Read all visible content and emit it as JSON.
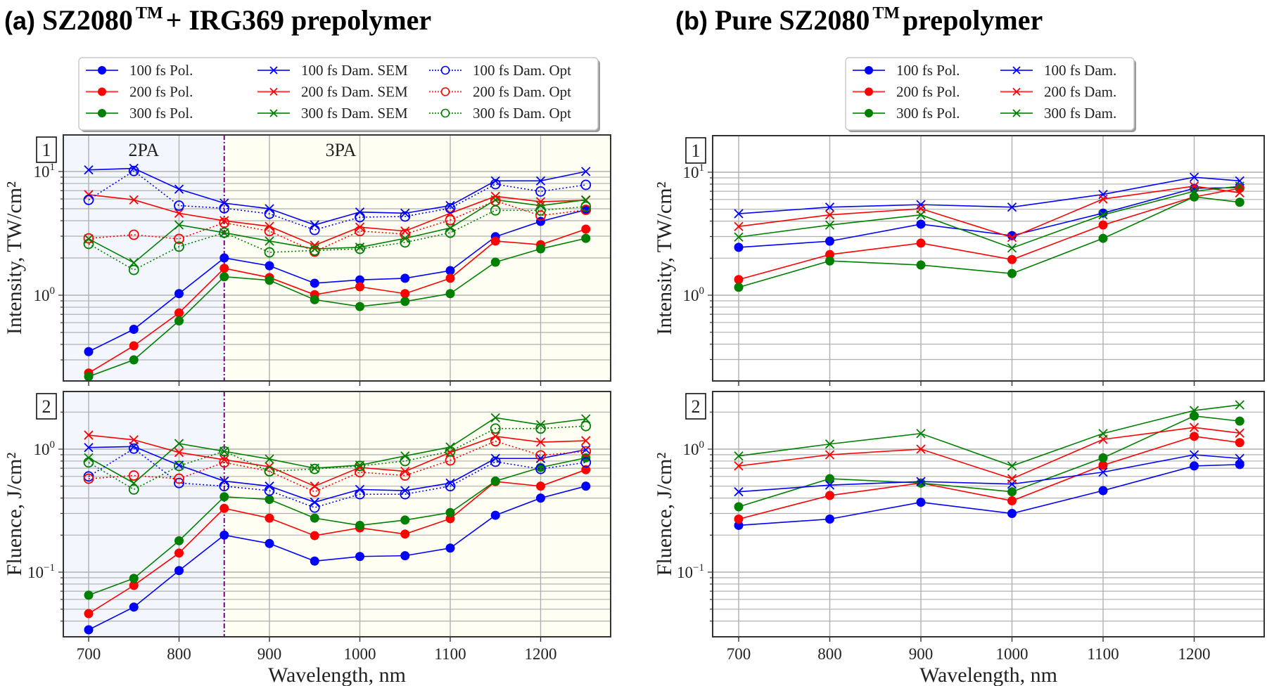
{
  "figure": {
    "panel_a_tag": "(a)",
    "panel_a_title": "SZ2080",
    "panel_a_title_sup": "TM",
    "panel_a_title_rest": " + IRG369 prepolymer",
    "panel_b_tag": "(b)",
    "panel_b_title": "Pure SZ2080",
    "panel_b_title_sup": "TM",
    "panel_b_title_rest": " prepolymer"
  },
  "colors": {
    "c100": "#0000ff",
    "c200": "#ff0000",
    "c300": "#007f00",
    "region2pa": "#f3f6fd",
    "region3pa": "#fefef2",
    "divider": "#800080",
    "grid": "#b0b0b0"
  },
  "chart_data": [
    {
      "id": "a1",
      "type": "line",
      "panel_label": "1",
      "title": "SZ2080TM + IRG369 prepolymer",
      "xlabel": "",
      "ylabel": "Intensity, TW/cm²",
      "yscale": "log",
      "ylim": [
        0.2,
        20
      ],
      "xlim": [
        672,
        1280
      ],
      "x": [
        700,
        750,
        800,
        850,
        900,
        950,
        1000,
        1050,
        1100,
        1150,
        1200,
        1250
      ],
      "xticks": [
        "700",
        "800",
        "900",
        "1000",
        "1100",
        "1200"
      ],
      "yticks": [
        {
          "base": "10",
          "exp": "1",
          "value": 10
        },
        {
          "base": "10",
          "exp": "0",
          "value": 1
        }
      ],
      "regions": [
        {
          "label": "2PA",
          "from": 672,
          "to": 850
        },
        {
          "label": "3PA",
          "from": 850,
          "to": 1280
        }
      ],
      "divider_x": 850,
      "grid": true,
      "series": [
        {
          "name": "100 fs Pol.",
          "color": "c100",
          "marker": "dot",
          "style": "solid",
          "values": [
            0.35,
            0.53,
            1.03,
            2.0,
            1.73,
            1.25,
            1.33,
            1.37,
            1.58,
            2.97,
            3.95,
            4.9
          ]
        },
        {
          "name": "200 fs Pol.",
          "color": "c200",
          "marker": "dot",
          "style": "solid",
          "values": [
            0.235,
            0.39,
            0.72,
            1.65,
            1.39,
            1.01,
            1.17,
            1.03,
            1.37,
            2.74,
            2.56,
            3.42
          ]
        },
        {
          "name": "300 fs Pol.",
          "color": "c300",
          "marker": "dot",
          "style": "solid",
          "values": [
            0.22,
            0.3,
            0.62,
            1.41,
            1.32,
            0.92,
            0.81,
            0.89,
            1.03,
            1.85,
            2.37,
            2.88
          ]
        },
        {
          "name": "100 fs Dam. SEM",
          "color": "c100",
          "marker": "x",
          "style": "solid",
          "values": [
            10.3,
            10.6,
            7.2,
            5.55,
            5.0,
            3.7,
            4.7,
            4.6,
            5.3,
            8.4,
            8.4,
            10.0
          ]
        },
        {
          "name": "200 fs Dam. SEM",
          "color": "c200",
          "marker": "x",
          "style": "solid",
          "values": [
            6.5,
            5.9,
            4.6,
            4.0,
            3.6,
            2.53,
            3.55,
            3.3,
            4.6,
            6.3,
            5.7,
            5.85
          ]
        },
        {
          "name": "300 fs Dam. SEM",
          "color": "c300",
          "marker": "x",
          "style": "solid",
          "values": [
            2.85,
            1.83,
            3.7,
            3.2,
            2.74,
            2.37,
            2.44,
            2.88,
            3.5,
            5.9,
            5.3,
            5.9
          ]
        },
        {
          "name": "100 fs Dam. Opt",
          "color": "c100",
          "marker": "ring",
          "style": "dotted",
          "values": [
            5.9,
            10.1,
            5.3,
            5.05,
            4.55,
            3.37,
            4.27,
            4.33,
            5.05,
            7.9,
            6.9,
            7.8
          ]
        },
        {
          "name": "200 fs Dam. Opt",
          "color": "c200",
          "marker": "ring",
          "style": "dotted",
          "values": [
            2.88,
            3.08,
            2.85,
            3.85,
            3.3,
            2.25,
            3.3,
            3.12,
            4.05,
            5.8,
            4.4,
            4.9
          ]
        },
        {
          "name": "300 fs Dam. Opt",
          "color": "c300",
          "marker": "ring",
          "style": "dotted",
          "values": [
            2.6,
            1.6,
            2.47,
            3.2,
            2.22,
            2.3,
            2.37,
            2.67,
            3.2,
            4.85,
            4.85,
            5.2
          ]
        }
      ]
    },
    {
      "id": "a2",
      "type": "line",
      "panel_label": "2",
      "xlabel": "Wavelength, nm",
      "ylabel": "Fluence, J/cm²",
      "yscale": "log",
      "ylim": [
        0.03,
        3.0
      ],
      "xlim": [
        672,
        1280
      ],
      "x": [
        700,
        750,
        800,
        850,
        900,
        950,
        1000,
        1050,
        1100,
        1150,
        1200,
        1250
      ],
      "xticks": [
        "700",
        "800",
        "900",
        "1000",
        "1100",
        "1200"
      ],
      "yticks": [
        {
          "base": "10",
          "exp": "0",
          "value": 1
        },
        {
          "base": "10",
          "exp": "−1",
          "value": 0.1
        }
      ],
      "regions": [
        {
          "label": "",
          "from": 672,
          "to": 850
        },
        {
          "label": "",
          "from": 850,
          "to": 1280
        }
      ],
      "divider_x": 850,
      "grid": true,
      "series": [
        {
          "name": "100 fs Pol.",
          "color": "c100",
          "marker": "dot",
          "style": "solid",
          "values": [
            0.034,
            0.052,
            0.103,
            0.2,
            0.171,
            0.123,
            0.134,
            0.136,
            0.157,
            0.29,
            0.4,
            0.5
          ]
        },
        {
          "name": "200 fs Pol.",
          "color": "c200",
          "marker": "dot",
          "style": "solid",
          "values": [
            0.046,
            0.078,
            0.143,
            0.33,
            0.275,
            0.198,
            0.229,
            0.204,
            0.272,
            0.545,
            0.5,
            0.68
          ]
        },
        {
          "name": "300 fs Pol.",
          "color": "c300",
          "marker": "dot",
          "style": "solid",
          "values": [
            0.065,
            0.089,
            0.18,
            0.41,
            0.39,
            0.275,
            0.24,
            0.265,
            0.305,
            0.55,
            0.71,
            0.85
          ]
        },
        {
          "name": "100 fs Dam. SEM",
          "color": "c100",
          "marker": "x",
          "style": "solid",
          "values": [
            1.03,
            1.05,
            0.74,
            0.55,
            0.5,
            0.37,
            0.47,
            0.46,
            0.53,
            0.84,
            0.84,
            0.99
          ]
        },
        {
          "name": "200 fs Dam. SEM",
          "color": "c200",
          "marker": "x",
          "style": "solid",
          "values": [
            1.3,
            1.19,
            0.94,
            0.82,
            0.72,
            0.5,
            0.71,
            0.66,
            0.94,
            1.27,
            1.14,
            1.17
          ]
        },
        {
          "name": "300 fs Dam. SEM",
          "color": "c300",
          "marker": "x",
          "style": "solid",
          "values": [
            0.85,
            0.53,
            1.11,
            0.96,
            0.83,
            0.7,
            0.74,
            0.88,
            1.04,
            1.8,
            1.58,
            1.76
          ]
        },
        {
          "name": "100 fs Dam. Opt",
          "color": "c100",
          "marker": "ring",
          "style": "dotted",
          "values": [
            0.6,
            1.01,
            0.53,
            0.5,
            0.46,
            0.335,
            0.43,
            0.43,
            0.5,
            0.79,
            0.69,
            0.78
          ]
        },
        {
          "name": "200 fs Dam. Opt",
          "color": "c200",
          "marker": "ring",
          "style": "dotted",
          "values": [
            0.575,
            0.61,
            0.575,
            0.78,
            0.66,
            0.45,
            0.65,
            0.61,
            0.81,
            1.16,
            0.89,
            0.96
          ]
        },
        {
          "name": "300 fs Dam. Opt",
          "color": "c300",
          "marker": "ring",
          "style": "dotted",
          "values": [
            0.78,
            0.47,
            0.73,
            0.96,
            0.66,
            0.69,
            0.73,
            0.8,
            0.96,
            1.47,
            1.47,
            1.54
          ]
        }
      ]
    },
    {
      "id": "b1",
      "type": "line",
      "panel_label": "1",
      "title": "Pure SZ2080TM prepolymer",
      "xlabel": "",
      "ylabel": "Intensity, TW/cm²",
      "yscale": "log",
      "ylim": [
        0.2,
        20
      ],
      "xlim": [
        672,
        1280
      ],
      "x": [
        700,
        800,
        900,
        1000,
        1100,
        1200,
        1250
      ],
      "xticks": [
        "700",
        "800",
        "900",
        "1000",
        "1100",
        "1200"
      ],
      "yticks": [
        {
          "base": "10",
          "exp": "1",
          "value": 10
        },
        {
          "base": "10",
          "exp": "0",
          "value": 1
        }
      ],
      "regions": [],
      "divider_x": null,
      "grid": true,
      "series": [
        {
          "name": "100 fs Pol.",
          "color": "c100",
          "marker": "dot",
          "style": "solid",
          "values": [
            2.45,
            2.75,
            3.78,
            3.05,
            4.65,
            7.4,
            7.5
          ]
        },
        {
          "name": "200 fs Pol.",
          "color": "c200",
          "marker": "dot",
          "style": "solid",
          "values": [
            1.34,
            2.14,
            2.65,
            1.95,
            3.72,
            6.3,
            7.4
          ]
        },
        {
          "name": "300 fs Pol.",
          "color": "c300",
          "marker": "dot",
          "style": "solid",
          "values": [
            1.16,
            1.9,
            1.76,
            1.5,
            2.9,
            6.3,
            5.7
          ]
        },
        {
          "name": "100 fs Dam.",
          "color": "c100",
          "marker": "x",
          "style": "solid",
          "values": [
            4.6,
            5.2,
            5.45,
            5.2,
            6.6,
            9.1,
            8.5
          ]
        },
        {
          "name": "200 fs Dam.",
          "color": "c200",
          "marker": "x",
          "style": "solid",
          "values": [
            3.62,
            4.5,
            5.05,
            2.95,
            6.05,
            7.7,
            6.8
          ]
        },
        {
          "name": "300 fs Dam.",
          "color": "c300",
          "marker": "x",
          "style": "solid",
          "values": [
            2.97,
            3.72,
            4.5,
            2.42,
            4.5,
            7.0,
            7.7
          ]
        }
      ]
    },
    {
      "id": "b2",
      "type": "line",
      "panel_label": "2",
      "xlabel": "Wavelength, nm",
      "ylabel": "Fluence, J/cm²",
      "yscale": "log",
      "ylim": [
        0.03,
        3.0
      ],
      "xlim": [
        672,
        1280
      ],
      "x": [
        700,
        800,
        900,
        1000,
        1100,
        1200,
        1250
      ],
      "xticks": [
        "700",
        "800",
        "900",
        "1000",
        "1100",
        "1200"
      ],
      "yticks": [
        {
          "base": "10",
          "exp": "0",
          "value": 1
        },
        {
          "base": "10",
          "exp": "−1",
          "value": 0.1
        }
      ],
      "regions": [],
      "divider_x": null,
      "grid": true,
      "series": [
        {
          "name": "100 fs Pol.",
          "color": "c100",
          "marker": "dot",
          "style": "solid",
          "values": [
            0.24,
            0.27,
            0.37,
            0.3,
            0.46,
            0.73,
            0.75
          ]
        },
        {
          "name": "200 fs Pol.",
          "color": "c200",
          "marker": "dot",
          "style": "solid",
          "values": [
            0.27,
            0.42,
            0.53,
            0.38,
            0.74,
            1.27,
            1.13
          ]
        },
        {
          "name": "300 fs Pol.",
          "color": "c300",
          "marker": "dot",
          "style": "solid",
          "values": [
            0.34,
            0.575,
            0.53,
            0.45,
            0.85,
            1.86,
            1.69
          ]
        },
        {
          "name": "100 fs Dam.",
          "color": "c100",
          "marker": "x",
          "style": "solid",
          "values": [
            0.45,
            0.51,
            0.545,
            0.52,
            0.65,
            0.9,
            0.84
          ]
        },
        {
          "name": "200 fs Dam.",
          "color": "c200",
          "marker": "x",
          "style": "solid",
          "values": [
            0.73,
            0.9,
            1.0,
            0.575,
            1.2,
            1.5,
            1.35
          ]
        },
        {
          "name": "300 fs Dam.",
          "color": "c300",
          "marker": "x",
          "style": "solid",
          "values": [
            0.88,
            1.1,
            1.34,
            0.73,
            1.34,
            2.06,
            2.29
          ]
        }
      ]
    }
  ],
  "legends": {
    "a": {
      "columns": [
        [
          "100 fs Pol.",
          "200 fs Pol.",
          "300 fs Pol."
        ],
        [
          "100 fs Dam. SEM",
          "200 fs Dam. SEM",
          "300 fs Dam. SEM"
        ],
        [
          "100 fs Dam. Opt",
          "200 fs Dam. Opt",
          "300 fs Dam. Opt"
        ]
      ]
    },
    "b": {
      "columns": [
        [
          "100 fs Pol.",
          "200 fs Pol.",
          "300 fs Pol."
        ],
        [
          "100 fs Dam.",
          "200 fs Dam.",
          "300 fs Dam."
        ]
      ]
    }
  }
}
